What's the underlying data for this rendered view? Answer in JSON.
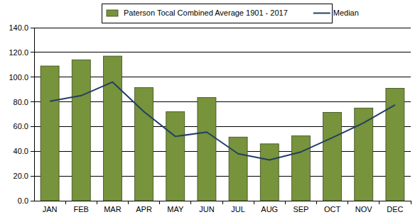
{
  "chart_data": {
    "type": "bar",
    "categories": [
      "JAN",
      "FEB",
      "MAR",
      "APR",
      "MAY",
      "JUN",
      "JUL",
      "AUG",
      "SEP",
      "OCT",
      "NOV",
      "DEC"
    ],
    "series": [
      {
        "name": "Paterson Tocal Combined Average 1901 - 2017",
        "type": "bar",
        "color": "#77933c",
        "values": [
          109,
          114,
          117,
          91.5,
          72,
          83.5,
          51.5,
          46,
          52.5,
          71.5,
          75,
          91
        ]
      },
      {
        "name": "Median",
        "type": "line",
        "color": "#243f60",
        "values": [
          80.5,
          85,
          96,
          72,
          52,
          55.5,
          38,
          33,
          39.5,
          51,
          63,
          77.5
        ]
      }
    ],
    "ylim": [
      0,
      140
    ],
    "yticks": [
      {
        "value": 0,
        "label": "0.0"
      },
      {
        "value": 20,
        "label": "20.0"
      },
      {
        "value": 40,
        "label": "40.0"
      },
      {
        "value": 60,
        "label": "60.0"
      },
      {
        "value": 80,
        "label": "80.0"
      },
      {
        "value": 100,
        "label": "100.0"
      },
      {
        "value": 120,
        "label": "120.0"
      },
      {
        "value": 140,
        "label": "140.0"
      }
    ],
    "grid": true,
    "legend": "top"
  }
}
